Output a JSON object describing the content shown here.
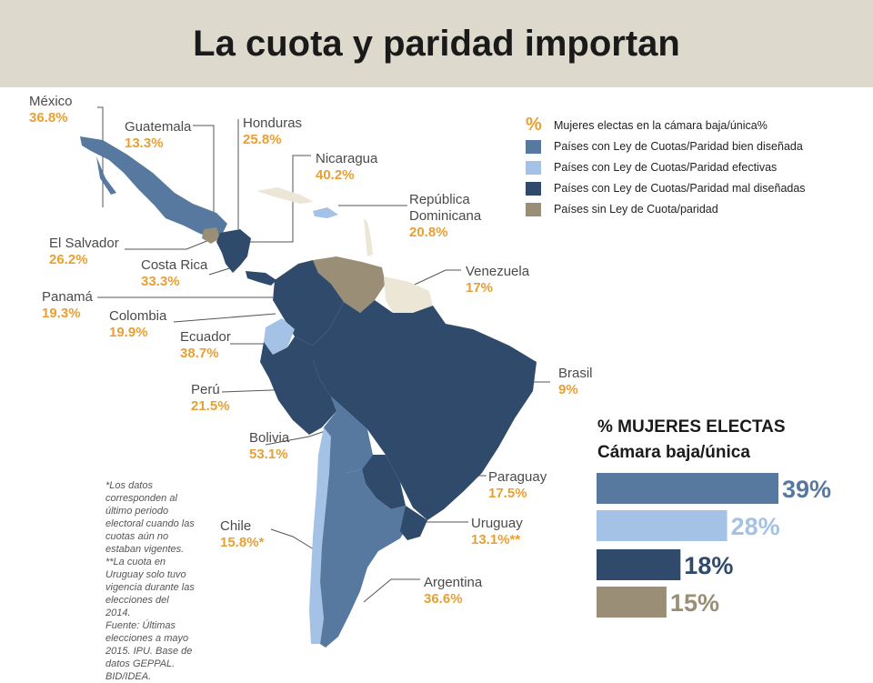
{
  "title": "La cuota y paridad importan",
  "colors": {
    "bien_disenada": "#58799f",
    "efectivas": "#a4c2e5",
    "mal_disenadas": "#2f4a6b",
    "sin_ley": "#9a8f76",
    "no_data": "#ece6d6",
    "accent": "#e8a032"
  },
  "legend": {
    "pct_symbol": "%",
    "items": [
      {
        "label": "Mujeres electas en la cámara baja/única%"
      },
      {
        "label": "Países con Ley de Cuotas/Paridad bien diseñada",
        "color": "#58799f"
      },
      {
        "label": "Países con Ley de Cuotas/Paridad efectivas",
        "color": "#a4c2e5"
      },
      {
        "label": "Países con Ley de Cuotas/Paridad mal diseñadas",
        "color": "#2f4a6b"
      },
      {
        "label": "Países sin Ley de Cuota/paridad",
        "color": "#9a8f76"
      }
    ]
  },
  "countries": {
    "mexico": {
      "name": "México",
      "value": "36.8%"
    },
    "guatemala": {
      "name": "Guatemala",
      "value": "13.3%"
    },
    "honduras": {
      "name": "Honduras",
      "value": "25.8%"
    },
    "nicaragua": {
      "name": "Nicaragua",
      "value": "40.2%"
    },
    "rep_dom": {
      "name": "República\nDominicana",
      "value": "20.8%"
    },
    "el_salvador": {
      "name": "El Salvador",
      "value": "26.2%"
    },
    "costa_rica": {
      "name": "Costa Rica",
      "value": "33.3%"
    },
    "venezuela": {
      "name": "Venezuela",
      "value": "17%"
    },
    "panama": {
      "name": "Panamá",
      "value": "19.3%"
    },
    "colombia": {
      "name": "Colombia",
      "value": "19.9%"
    },
    "ecuador": {
      "name": "Ecuador",
      "value": "38.7%"
    },
    "brasil": {
      "name": "Brasil",
      "value": "9%"
    },
    "peru": {
      "name": "Perú",
      "value": "21.5%"
    },
    "bolivia": {
      "name": "Bolivia",
      "value": "53.1%"
    },
    "paraguay": {
      "name": "Paraguay",
      "value": "17.5%"
    },
    "chile": {
      "name": "Chile",
      "value": "15.8%*"
    },
    "uruguay": {
      "name": "Uruguay",
      "value": "13.1%**"
    },
    "argentina": {
      "name": "Argentina",
      "value": "36.6%"
    }
  },
  "chart_data": {
    "type": "bar",
    "orientation": "horizontal",
    "title": "% MUJERES ELECTAS\nCámara baja/única",
    "categories": [
      "Países con Ley de Cuotas/Paridad bien diseñada",
      "Países con Ley de Cuotas/Paridad efectivas",
      "Países con Ley de Cuotas/Paridad mal diseñadas",
      "Países sin Ley de Cuota/paridad"
    ],
    "values": [
      39,
      28,
      18,
      15
    ],
    "value_labels": [
      "39%",
      "28%",
      "18%",
      "15%"
    ],
    "colors": [
      "#58799f",
      "#a4c2e5",
      "#2f4a6b",
      "#9a8f76"
    ],
    "label_colors": [
      "#58799f",
      "#a4c2e5",
      "#2f4a6b",
      "#9a8f76"
    ]
  },
  "note": "*Los datos corresponden al último periodo electoral cuando las cuotas aún no estaban vigentes.\n**La cuota en Uruguay solo tuvo vigencia durante las elecciones del 2014.\nFuente: Últimas elecciones a mayo 2015. IPU. Base de datos GEPPAL. BID/IDEA."
}
